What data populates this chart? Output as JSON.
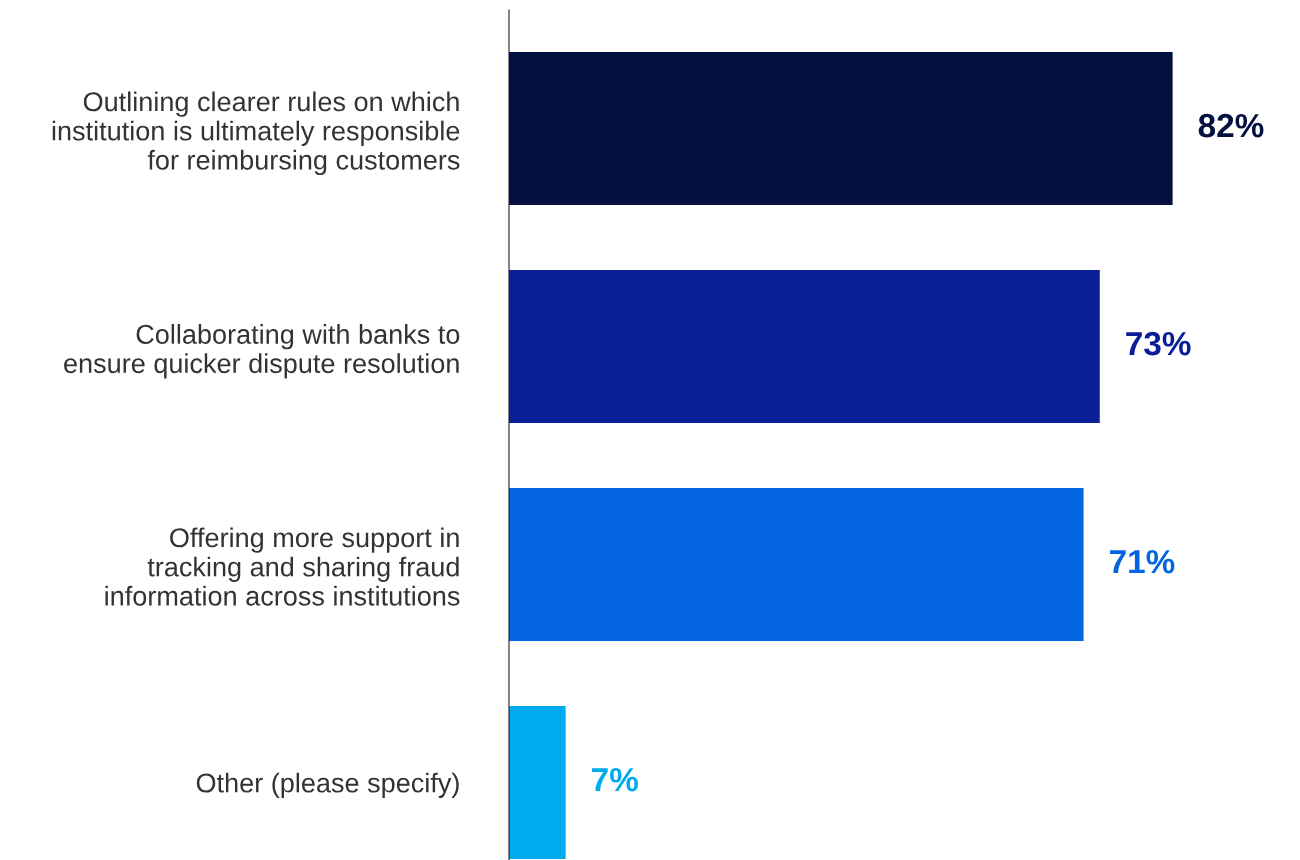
{
  "chart_data": {
    "type": "bar",
    "orientation": "horizontal",
    "categories": [
      "Outlining clearer rules on which\ninstitution is ultimately responsible\nfor reimbursing customers",
      "Collaborating with banks to\nensure quicker dispute resolution",
      "Offering more support in\ntracking and sharing fraud\ninformation across institutions",
      "Other (please specify)"
    ],
    "values": [
      82,
      73,
      71,
      7
    ],
    "colors": [
      "#04103f",
      "#0a1f96",
      "#0366e0",
      "#00aaef"
    ],
    "value_labels": [
      "82%",
      "73%",
      "71%",
      "7%"
    ],
    "grid": false,
    "legend": false
  }
}
